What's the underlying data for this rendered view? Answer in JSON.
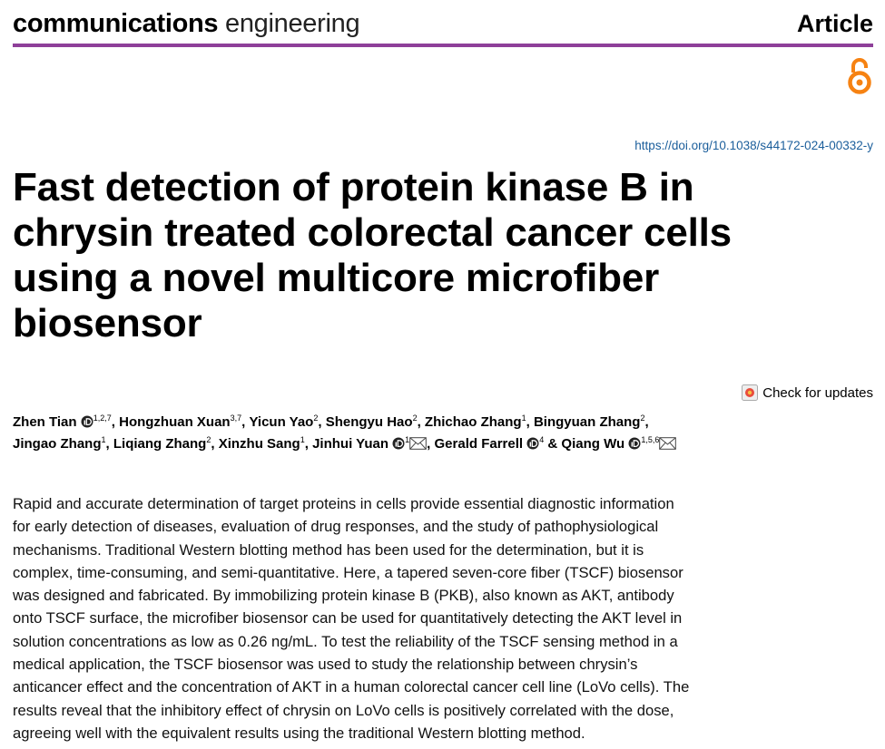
{
  "header": {
    "journal_bold": "communications",
    "journal_light": "engineering",
    "article_type": "Article"
  },
  "doi": "https://doi.org/10.1038/s44172-024-00332-y",
  "title": "Fast detection of protein kinase B in chrysin treated colorectal cancer cells using a novel multicore microfiber biosensor",
  "check_updates": "Check for updates",
  "authors": [
    {
      "name": "Zhen Tian",
      "affiliations": "1,2,7",
      "orcid": true,
      "email": false,
      "separator": ", "
    },
    {
      "name": "Hongzhuan Xuan",
      "affiliations": "3,7",
      "orcid": false,
      "email": false,
      "separator": ", "
    },
    {
      "name": "Yicun Yao",
      "affiliations": "2",
      "orcid": false,
      "email": false,
      "separator": ", "
    },
    {
      "name": "Shengyu Hao",
      "affiliations": "2",
      "orcid": false,
      "email": false,
      "separator": ", "
    },
    {
      "name": "Zhichao Zhang",
      "affiliations": "1",
      "orcid": false,
      "email": false,
      "separator": ", "
    },
    {
      "name": "Bingyuan Zhang",
      "affiliations": "2",
      "orcid": false,
      "email": false,
      "separator": ", "
    },
    {
      "name": "Jingao Zhang",
      "affiliations": "1",
      "orcid": false,
      "email": false,
      "separator": ", "
    },
    {
      "name": "Liqiang Zhang",
      "affiliations": "2",
      "orcid": false,
      "email": false,
      "separator": ", "
    },
    {
      "name": "Xinzhu Sang",
      "affiliations": "1",
      "orcid": false,
      "email": false,
      "separator": ", "
    },
    {
      "name": "Jinhui Yuan",
      "affiliations": "1",
      "orcid": true,
      "email": true,
      "separator": ", "
    },
    {
      "name": "Gerald Farrell",
      "affiliations": "4",
      "orcid": true,
      "email": false,
      "separator": " & "
    },
    {
      "name": "Qiang Wu",
      "affiliations": "1,5,6",
      "orcid": true,
      "email": true
    }
  ],
  "abstract_lines": [
    "Rapid and accurate determination of target proteins in cells provide essential diagnostic information",
    "for early detection of diseases, evaluation of drug responses, and the study of pathophysiological",
    "mechanisms. Traditional Western blotting method has been used for the determination, but it is",
    "complex, time-consuming, and semi-quantitative. Here, a tapered seven-core fiber (TSCF) biosensor",
    "was designed and fabricated. By immobilizing protein kinase B (PKB), also known as AKT, antibody",
    "onto TSCF surface, the microfiber biosensor can be used for quantitatively detecting the AKT level in",
    "solution concentrations as low as 0.26 ng/mL. To test the reliability of the TSCF sensing method in a",
    "medical application, the TSCF biosensor was used to study the relationship between chrysin’s",
    "anticancer effect and the concentration of AKT in a human colorectal cancer cell line (LoVo cells). The",
    "results reveal that the inhibitory effect of chrysin on LoVo cells is positively correlated with the dose,",
    "agreeing well with the equivalent results using the traditional Western blotting method."
  ]
}
